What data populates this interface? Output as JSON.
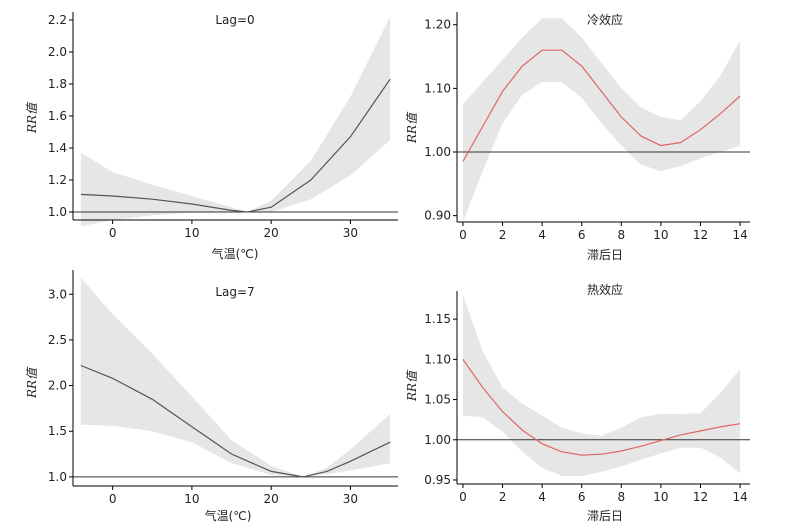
{
  "chart_data": [
    {
      "type": "line",
      "title": "Lag=0",
      "xlabel": "气温(℃)",
      "ylabel": "RR值",
      "xlim": [
        -5,
        36
      ],
      "ylim": [
        0.95,
        2.25
      ],
      "xticks": [
        0,
        10,
        20,
        30
      ],
      "yticks": [
        1.0,
        1.2,
        1.4,
        1.6,
        1.8,
        2.0,
        2.2
      ],
      "ytick_labels": [
        "1.0",
        "1.2",
        "1.4",
        "1.6",
        "1.8",
        "2.0",
        "2.2"
      ],
      "reference_line": 1.0,
      "line_color": "#555555",
      "band_color": "#e6e6e6",
      "x": [
        -4,
        0,
        5,
        10,
        15,
        17,
        20,
        25,
        30,
        35
      ],
      "y": [
        1.11,
        1.1,
        1.08,
        1.05,
        1.01,
        1.0,
        1.03,
        1.2,
        1.47,
        1.83
      ],
      "lower": [
        0.91,
        0.95,
        0.98,
        0.995,
        0.997,
        1.0,
        1.0,
        1.08,
        1.23,
        1.45
      ],
      "upper": [
        1.37,
        1.25,
        1.17,
        1.1,
        1.03,
        1.0,
        1.07,
        1.32,
        1.72,
        2.22
      ]
    },
    {
      "type": "line",
      "title": "冷效应",
      "xlabel": "滞后日",
      "ylabel": "RR值",
      "xlim": [
        -0.3,
        14.5
      ],
      "ylim": [
        0.89,
        1.22
      ],
      "xticks": [
        0,
        2,
        4,
        6,
        8,
        10,
        12,
        14
      ],
      "yticks": [
        0.9,
        1.0,
        1.1,
        1.2
      ],
      "ytick_labels": [
        "0.90",
        "1.00",
        "1.10",
        "1.20"
      ],
      "reference_line": 1.0,
      "line_color": "#e06666",
      "band_color": "#e6e6e6",
      "x": [
        0,
        1,
        2,
        3,
        4,
        5,
        6,
        7,
        8,
        9,
        10,
        11,
        12,
        13,
        14
      ],
      "y": [
        0.985,
        1.04,
        1.095,
        1.135,
        1.16,
        1.16,
        1.135,
        1.095,
        1.055,
        1.025,
        1.01,
        1.015,
        1.035,
        1.06,
        1.088
      ],
      "lower": [
        0.89,
        0.97,
        1.045,
        1.09,
        1.11,
        1.11,
        1.085,
        1.045,
        1.01,
        0.98,
        0.97,
        0.978,
        0.99,
        1.0,
        1.01
      ],
      "upper": [
        1.075,
        1.11,
        1.145,
        1.18,
        1.21,
        1.21,
        1.18,
        1.14,
        1.1,
        1.07,
        1.055,
        1.05,
        1.08,
        1.12,
        1.175
      ]
    },
    {
      "type": "line",
      "title": "Lag=7",
      "xlabel": "气温(℃)",
      "ylabel": "RR值",
      "xlim": [
        -5,
        36
      ],
      "ylim": [
        0.9,
        3.2
      ],
      "xticks": [
        0,
        10,
        20,
        30
      ],
      "yticks": [
        1.0,
        1.5,
        2.0,
        2.5,
        3.0
      ],
      "ytick_labels": [
        "1.0",
        "1.5",
        "2.0",
        "2.5",
        "3.0"
      ],
      "reference_line": 1.0,
      "line_color": "#555555",
      "band_color": "#e6e6e6",
      "x": [
        -4,
        0,
        5,
        10,
        15,
        20,
        24,
        27,
        30,
        35
      ],
      "y": [
        2.22,
        2.08,
        1.85,
        1.55,
        1.25,
        1.06,
        1.0,
        1.06,
        1.17,
        1.38
      ],
      "lower": [
        1.57,
        1.56,
        1.5,
        1.38,
        1.15,
        1.02,
        1.0,
        1.03,
        1.07,
        1.15
      ],
      "upper": [
        3.18,
        2.78,
        2.35,
        1.88,
        1.4,
        1.12,
        1.0,
        1.1,
        1.3,
        1.69
      ]
    },
    {
      "type": "line",
      "title": "热效应",
      "xlabel": "滞后日",
      "ylabel": "RR值",
      "xlim": [
        -0.3,
        14.5
      ],
      "ylim": [
        0.945,
        1.185
      ],
      "xticks": [
        0,
        2,
        4,
        6,
        8,
        10,
        12,
        14
      ],
      "yticks": [
        0.95,
        1.0,
        1.05,
        1.1,
        1.15
      ],
      "ytick_labels": [
        "0.95",
        "1.00",
        "1.05",
        "1.10",
        "1.15"
      ],
      "reference_line": 1.0,
      "line_color": "#e06666",
      "band_color": "#e6e6e6",
      "x": [
        0,
        1,
        2,
        3,
        4,
        5,
        6,
        7,
        8,
        9,
        10,
        11,
        12,
        13,
        14
      ],
      "y": [
        1.1,
        1.065,
        1.035,
        1.012,
        0.995,
        0.985,
        0.981,
        0.982,
        0.986,
        0.992,
        0.999,
        1.006,
        1.011,
        1.016,
        1.02
      ],
      "lower": [
        1.03,
        1.028,
        1.01,
        0.985,
        0.965,
        0.955,
        0.955,
        0.96,
        0.967,
        0.975,
        0.983,
        0.99,
        0.99,
        0.978,
        0.958
      ],
      "upper": [
        1.18,
        1.11,
        1.065,
        1.045,
        1.03,
        1.015,
        1.008,
        1.005,
        1.015,
        1.028,
        1.032,
        1.032,
        1.033,
        1.058,
        1.088
      ]
    }
  ]
}
